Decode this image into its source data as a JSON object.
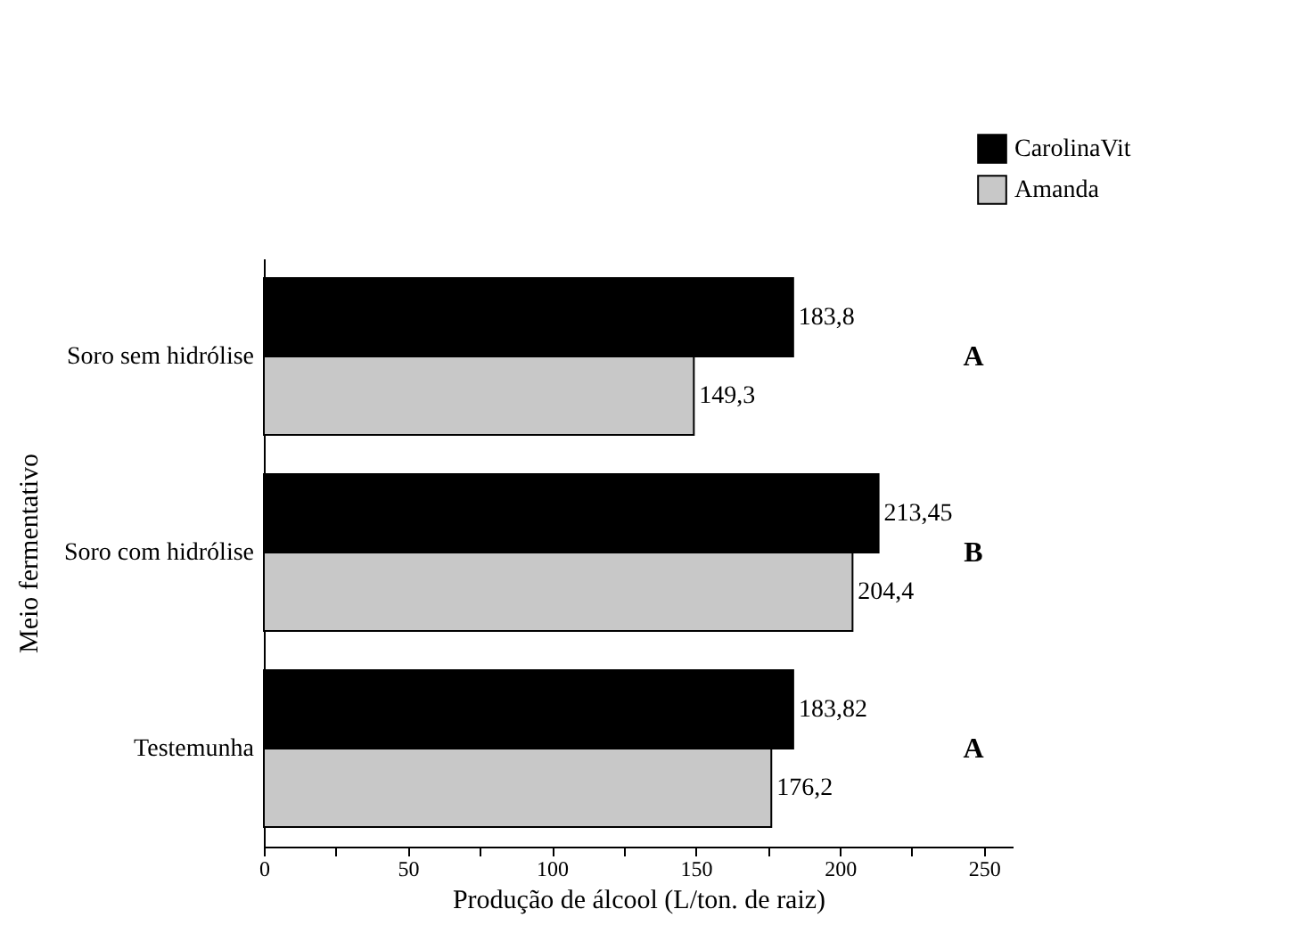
{
  "chart_data": {
    "type": "bar",
    "orientation": "horizontal",
    "xlabel": "Produção de álcool (L/ton. de raiz)",
    "ylabel": "Meio  fermentativo",
    "categories": [
      "Soro sem hidrólise",
      "Soro com hidrólise",
      "Testemunha"
    ],
    "series": [
      {
        "name": "CarolinaVit",
        "color": "#000000",
        "values": [
          183.8,
          213.45,
          183.82
        ],
        "value_labels": [
          "183,8",
          "213,45",
          "183,82"
        ]
      },
      {
        "name": "Amanda",
        "color": "#c8c8c8",
        "values": [
          149.3,
          204.4,
          176.2
        ],
        "value_labels": [
          "149,3",
          "204,4",
          "176,2"
        ]
      }
    ],
    "xlim": [
      0,
      260
    ],
    "xticks": [
      0,
      {
        "value": 25,
        "label": null
      },
      50,
      {
        "value": 75,
        "label": null
      },
      100,
      {
        "value": 125,
        "label": null
      },
      150,
      {
        "value": 175,
        "label": null
      },
      200,
      {
        "value": 225,
        "label": null
      },
      250
    ],
    "annotations": [
      "A",
      "B",
      "A"
    ],
    "legend": "top right",
    "grid": false
  }
}
